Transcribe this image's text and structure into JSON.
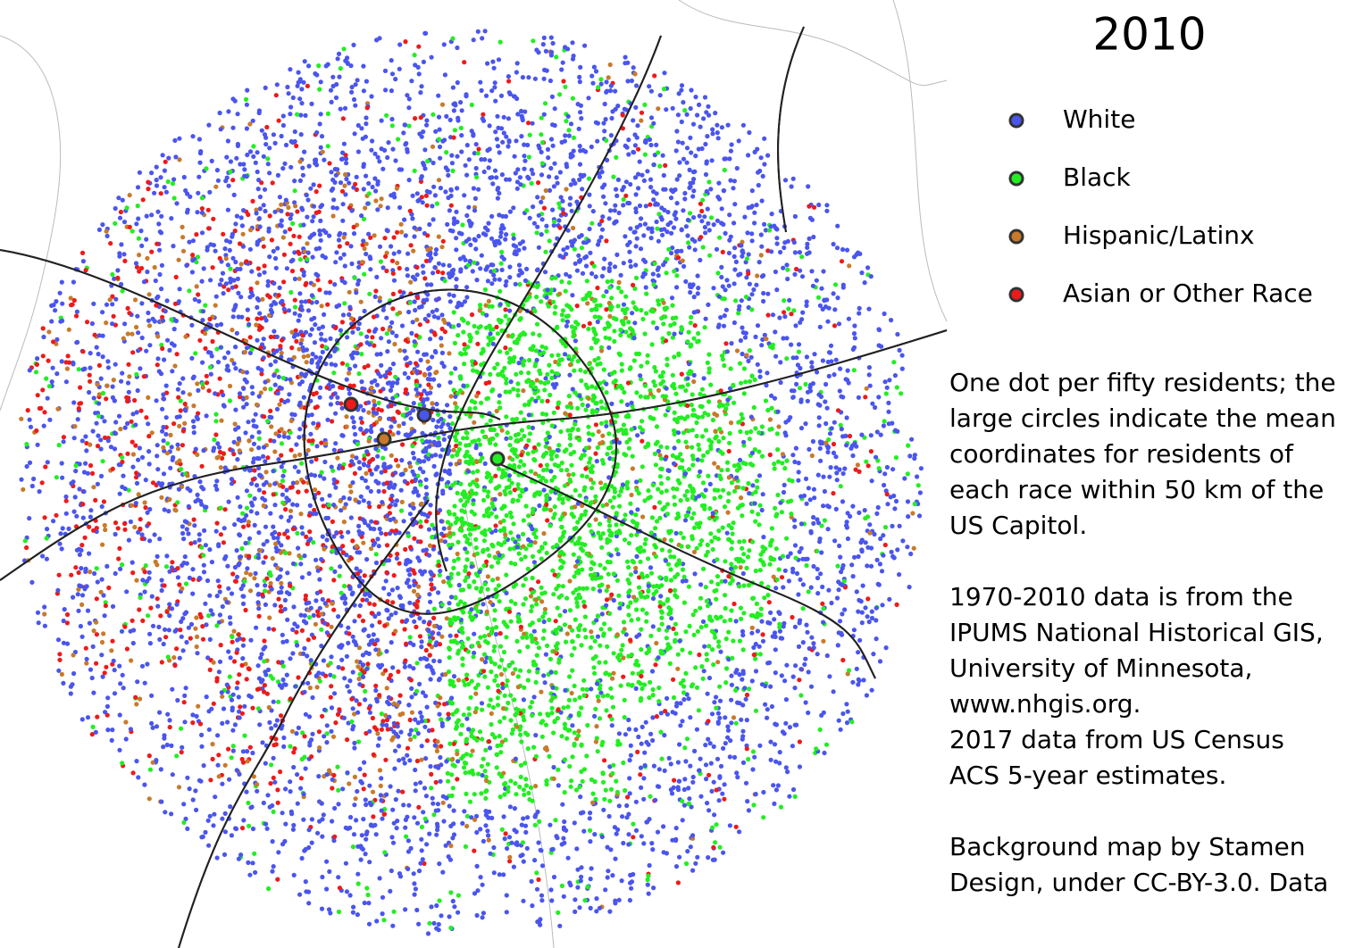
{
  "title": "2010",
  "legend": [
    {
      "label": "White",
      "color": "#4a55ee"
    },
    {
      "label": "Black",
      "color": "#22ee22"
    },
    {
      "label": "Hispanic/Latinx",
      "color": "#c87a2a"
    },
    {
      "label": "Asian or Other Race",
      "color": "#ee1a1a"
    }
  ],
  "description": [
    [
      "One dot per fifty residents; the",
      "large circles indicate the mean",
      "coordinates for residents of",
      "each race within 50 km of the",
      "US Capitol."
    ],
    [
      "1970-2010 data is from the",
      "IPUMS National Historical GIS,",
      "University of Minnesota,",
      "www.nhgis.org.",
      "2017 data from US Census",
      "ACS 5-year estimates."
    ],
    [
      "Background map by Stamen",
      "Design, under CC-BY-3.0. Data"
    ]
  ]
}
